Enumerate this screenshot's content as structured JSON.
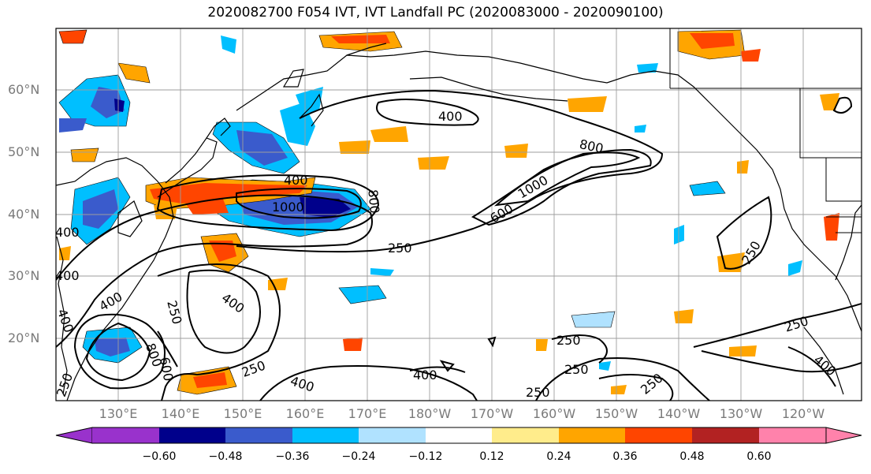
{
  "title": "2020082700 F054 IVT, IVT Landfall PC (2020083000 - 2020090100)",
  "lat_labels": [
    "60°N",
    "50°N",
    "40°N",
    "30°N",
    "20°N"
  ],
  "lon_labels": [
    "130°E",
    "140°E",
    "150°E",
    "160°E",
    "170°E",
    "180°W",
    "170°W",
    "160°W",
    "150°W",
    "140°W",
    "130°W",
    "120°W"
  ],
  "contour_labels": [
    "400",
    "800",
    "1000",
    "400",
    "1000",
    "800",
    "600",
    "400",
    "250",
    "250",
    "250",
    "400",
    "400",
    "400",
    "250",
    "800",
    "400",
    "600",
    "250",
    "250",
    "400",
    "250",
    "250",
    "250",
    "400",
    "250",
    "400"
  ],
  "colorbar": {
    "colors": [
      "#9932cc",
      "#00008b",
      "#3a5bcc",
      "#00bfff",
      "#b0e2ff",
      "#ffffff",
      "#ffec8b",
      "#ffa500",
      "#ff4500",
      "#b22222",
      "#ff82ab"
    ],
    "ticks": [
      "−0.60",
      "−0.48",
      "−0.36",
      "−0.24",
      "−0.12",
      "0.12",
      "0.24",
      "0.36",
      "0.48",
      "0.60"
    ]
  }
}
